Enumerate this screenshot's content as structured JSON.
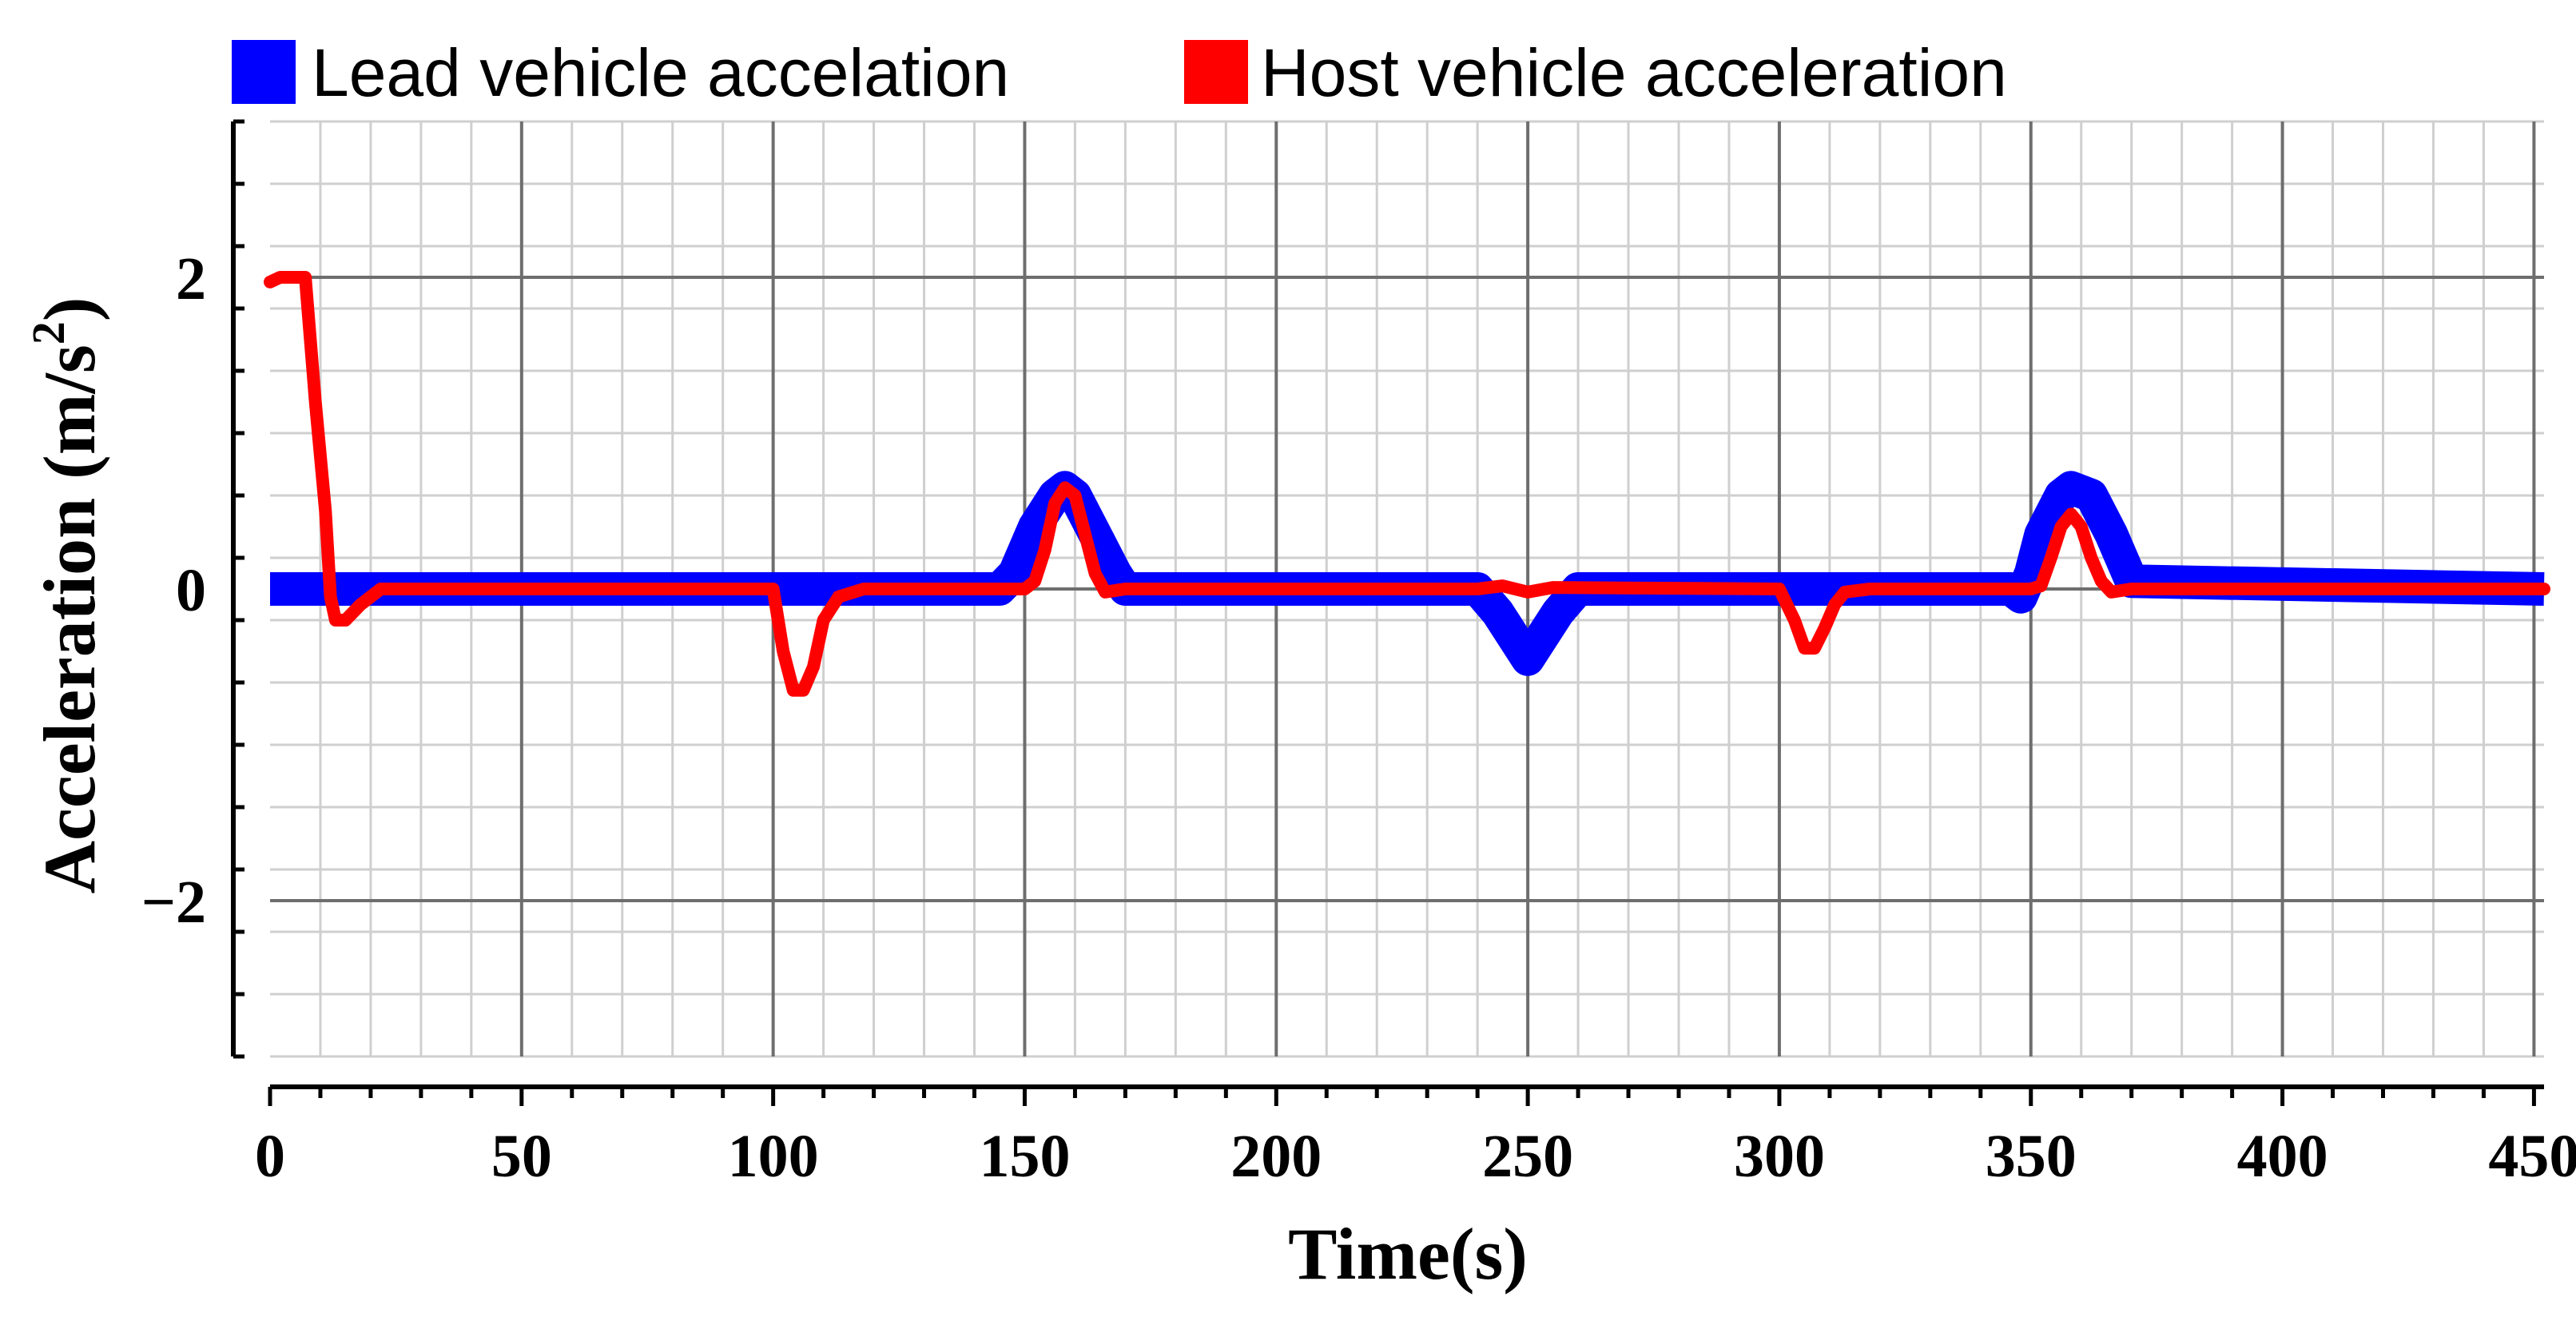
{
  "chart_data": {
    "type": "line",
    "title": "",
    "xlabel": "Time(s)",
    "ylabel": "Acceleration (m/s",
    "ylabel_sup": "2",
    "ylabel_close": ")",
    "xlim": [
      0,
      452
    ],
    "ylim": [
      -3,
      3
    ],
    "x_ticks": [
      0,
      50,
      100,
      150,
      200,
      250,
      300,
      350,
      400,
      450
    ],
    "y_ticks": [
      2,
      0,
      -2
    ],
    "y_tick_labels": [
      "2",
      "0",
      "−2"
    ],
    "grid": true,
    "legend_position": "top",
    "series": [
      {
        "name": "Lead vehicle accelation",
        "color": "#0000ff",
        "style": "band",
        "x": [
          0,
          145,
          148,
          152,
          156,
          158,
          160,
          164,
          168,
          170,
          240,
          244,
          248,
          250,
          252,
          256,
          260,
          346,
          348,
          350,
          352,
          356,
          358,
          362,
          366,
          370,
          452
        ],
        "values": [
          0,
          0,
          0.1,
          0.4,
          0.6,
          0.65,
          0.6,
          0.35,
          0.1,
          0,
          0,
          -0.15,
          -0.35,
          -0.45,
          -0.35,
          -0.15,
          0,
          0,
          -0.05,
          0.1,
          0.35,
          0.6,
          0.65,
          0.6,
          0.35,
          0.05,
          0
        ]
      },
      {
        "name": "Host vehicle acceleration",
        "color": "#ff0000",
        "style": "line",
        "x": [
          0,
          2,
          7,
          9,
          11,
          12,
          13,
          15,
          18,
          22,
          28,
          100,
          102,
          104,
          106,
          108,
          110,
          113,
          118,
          150,
          152,
          154,
          156,
          158,
          160,
          162,
          164,
          166,
          170,
          240,
          245,
          250,
          255,
          300,
          303,
          305,
          307,
          309,
          311,
          313,
          318,
          350,
          352,
          354,
          356,
          358,
          360,
          362,
          364,
          366,
          370,
          452
        ],
        "values": [
          1.97,
          2.0,
          2.0,
          1.2,
          0.5,
          -0.05,
          -0.2,
          -0.2,
          -0.1,
          0.0,
          0.0,
          0.0,
          -0.4,
          -0.65,
          -0.65,
          -0.5,
          -0.2,
          -0.05,
          0.0,
          0.0,
          0.05,
          0.25,
          0.55,
          0.65,
          0.6,
          0.35,
          0.1,
          -0.02,
          0.0,
          0.0,
          0.02,
          -0.02,
          0.01,
          0.0,
          -0.2,
          -0.38,
          -0.38,
          -0.25,
          -0.1,
          -0.02,
          0.0,
          0.0,
          0.02,
          0.2,
          0.4,
          0.48,
          0.4,
          0.2,
          0.05,
          -0.02,
          0.0,
          0.0
        ]
      }
    ]
  }
}
